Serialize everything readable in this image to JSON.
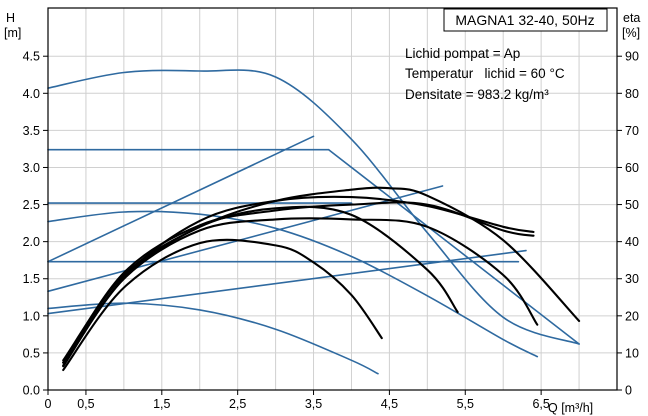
{
  "chart_data": {
    "type": "line",
    "title": "MAGNA1 32-40, 50Hz",
    "notes": [
      "Lichid pompat = Ap",
      "Temperatur   lichid = 60 °C",
      "Densitate = 983.2 kg/m³"
    ],
    "x_axis": {
      "label": "Q [m³/h]",
      "range": [
        0,
        7.5
      ],
      "ticks": [
        0,
        0.5,
        1.5,
        2.5,
        3.5,
        4.5,
        5.5,
        6.5
      ],
      "tick_labels": [
        "0",
        "0,5",
        "1,5",
        "2,5",
        "3,5",
        "4,5",
        "5,5",
        "6,5"
      ],
      "minor_step": 0.5
    },
    "y_left": {
      "label_top": "H",
      "label_unit": "[m]",
      "range": [
        0,
        5.15
      ],
      "ticks": [
        0.0,
        0.5,
        1.0,
        1.5,
        2.0,
        2.5,
        3.0,
        3.5,
        4.0,
        4.5
      ],
      "tick_labels": [
        "0.0",
        "0.5",
        "1.0",
        "1.5",
        "2.0",
        "2.5",
        "3.0",
        "3.5",
        "4.0",
        "4.5"
      ]
    },
    "y_right": {
      "label_top": "eta",
      "label_unit": "[%]",
      "range": [
        0,
        103
      ],
      "ticks": [
        0,
        10,
        20,
        30,
        40,
        50,
        60,
        70,
        80,
        90
      ],
      "tick_labels": [
        "0",
        "10",
        "20",
        "30",
        "40",
        "50",
        "60",
        "70",
        "80",
        "90"
      ]
    },
    "grid": true,
    "colors": {
      "pump_curves": "#2f6aa0",
      "efficiency_curves": "#000000",
      "grid": "#d0d0d0"
    },
    "series": [
      {
        "kind": "pump",
        "x": [
          0,
          1,
          2,
          3,
          4,
          5,
          6,
          7.0
        ],
        "y": [
          4.07,
          4.28,
          4.3,
          4.22,
          3.38,
          2.12,
          0.98,
          0.62
        ]
      },
      {
        "kind": "pump",
        "x": [
          0,
          3.7
        ],
        "y": [
          3.24,
          3.24
        ]
      },
      {
        "kind": "pump",
        "x": [
          3.7,
          7.0
        ],
        "y": [
          3.24,
          0.62
        ]
      },
      {
        "kind": "pump",
        "x": [
          0,
          4.0
        ],
        "y": [
          2.52,
          2.52
        ]
      },
      {
        "kind": "pump",
        "x": [
          0,
          6.2
        ],
        "y": [
          1.73,
          1.73
        ]
      },
      {
        "kind": "pump",
        "x": [
          0,
          3.5
        ],
        "y": [
          1.73,
          3.42
        ]
      },
      {
        "kind": "pump",
        "x": [
          0,
          5.2
        ],
        "y": [
          1.33,
          2.75
        ]
      },
      {
        "kind": "pump",
        "x": [
          0,
          6.3
        ],
        "y": [
          1.03,
          1.88
        ]
      },
      {
        "kind": "pump",
        "x": [
          0,
          1,
          2,
          3,
          4,
          5,
          6,
          6.45
        ],
        "y": [
          2.27,
          2.4,
          2.37,
          2.18,
          1.8,
          1.27,
          0.68,
          0.45
        ]
      },
      {
        "kind": "pump",
        "x": [
          0,
          1,
          2,
          3,
          4,
          4.35
        ],
        "y": [
          1.1,
          1.17,
          1.08,
          0.82,
          0.4,
          0.22
        ]
      },
      {
        "kind": "eta",
        "x": [
          0.2,
          1,
          2,
          3,
          3.5,
          4,
          4.4
        ],
        "y": [
          0.27,
          1.38,
          1.98,
          1.95,
          1.72,
          1.28,
          0.7
        ]
      },
      {
        "kind": "eta",
        "x": [
          0.2,
          1,
          2,
          3,
          4,
          5,
          5.4
        ],
        "y": [
          0.33,
          1.5,
          2.2,
          2.45,
          2.36,
          1.62,
          1.05
        ]
      },
      {
        "kind": "eta",
        "x": [
          0.2,
          1,
          2,
          3,
          4,
          5,
          6,
          6.45
        ],
        "y": [
          0.37,
          1.5,
          2.15,
          2.3,
          2.3,
          2.2,
          1.55,
          0.88
        ]
      },
      {
        "kind": "eta",
        "x": [
          0.2,
          1,
          2,
          3,
          4,
          4.5,
          5,
          6,
          7.0
        ],
        "y": [
          0.4,
          1.55,
          2.2,
          2.55,
          2.7,
          2.72,
          2.62,
          2.02,
          0.93
        ]
      },
      {
        "kind": "eta",
        "x": [
          0.2,
          1,
          2,
          3,
          4,
          5,
          6,
          6.4
        ],
        "y": [
          0.32,
          1.52,
          2.28,
          2.55,
          2.6,
          2.48,
          2.2,
          2.13
        ]
      },
      {
        "kind": "eta",
        "x": [
          0.2,
          1,
          2,
          3,
          4,
          5,
          6,
          6.4
        ],
        "y": [
          0.37,
          1.58,
          2.22,
          2.42,
          2.5,
          2.5,
          2.15,
          2.08
        ]
      }
    ]
  }
}
